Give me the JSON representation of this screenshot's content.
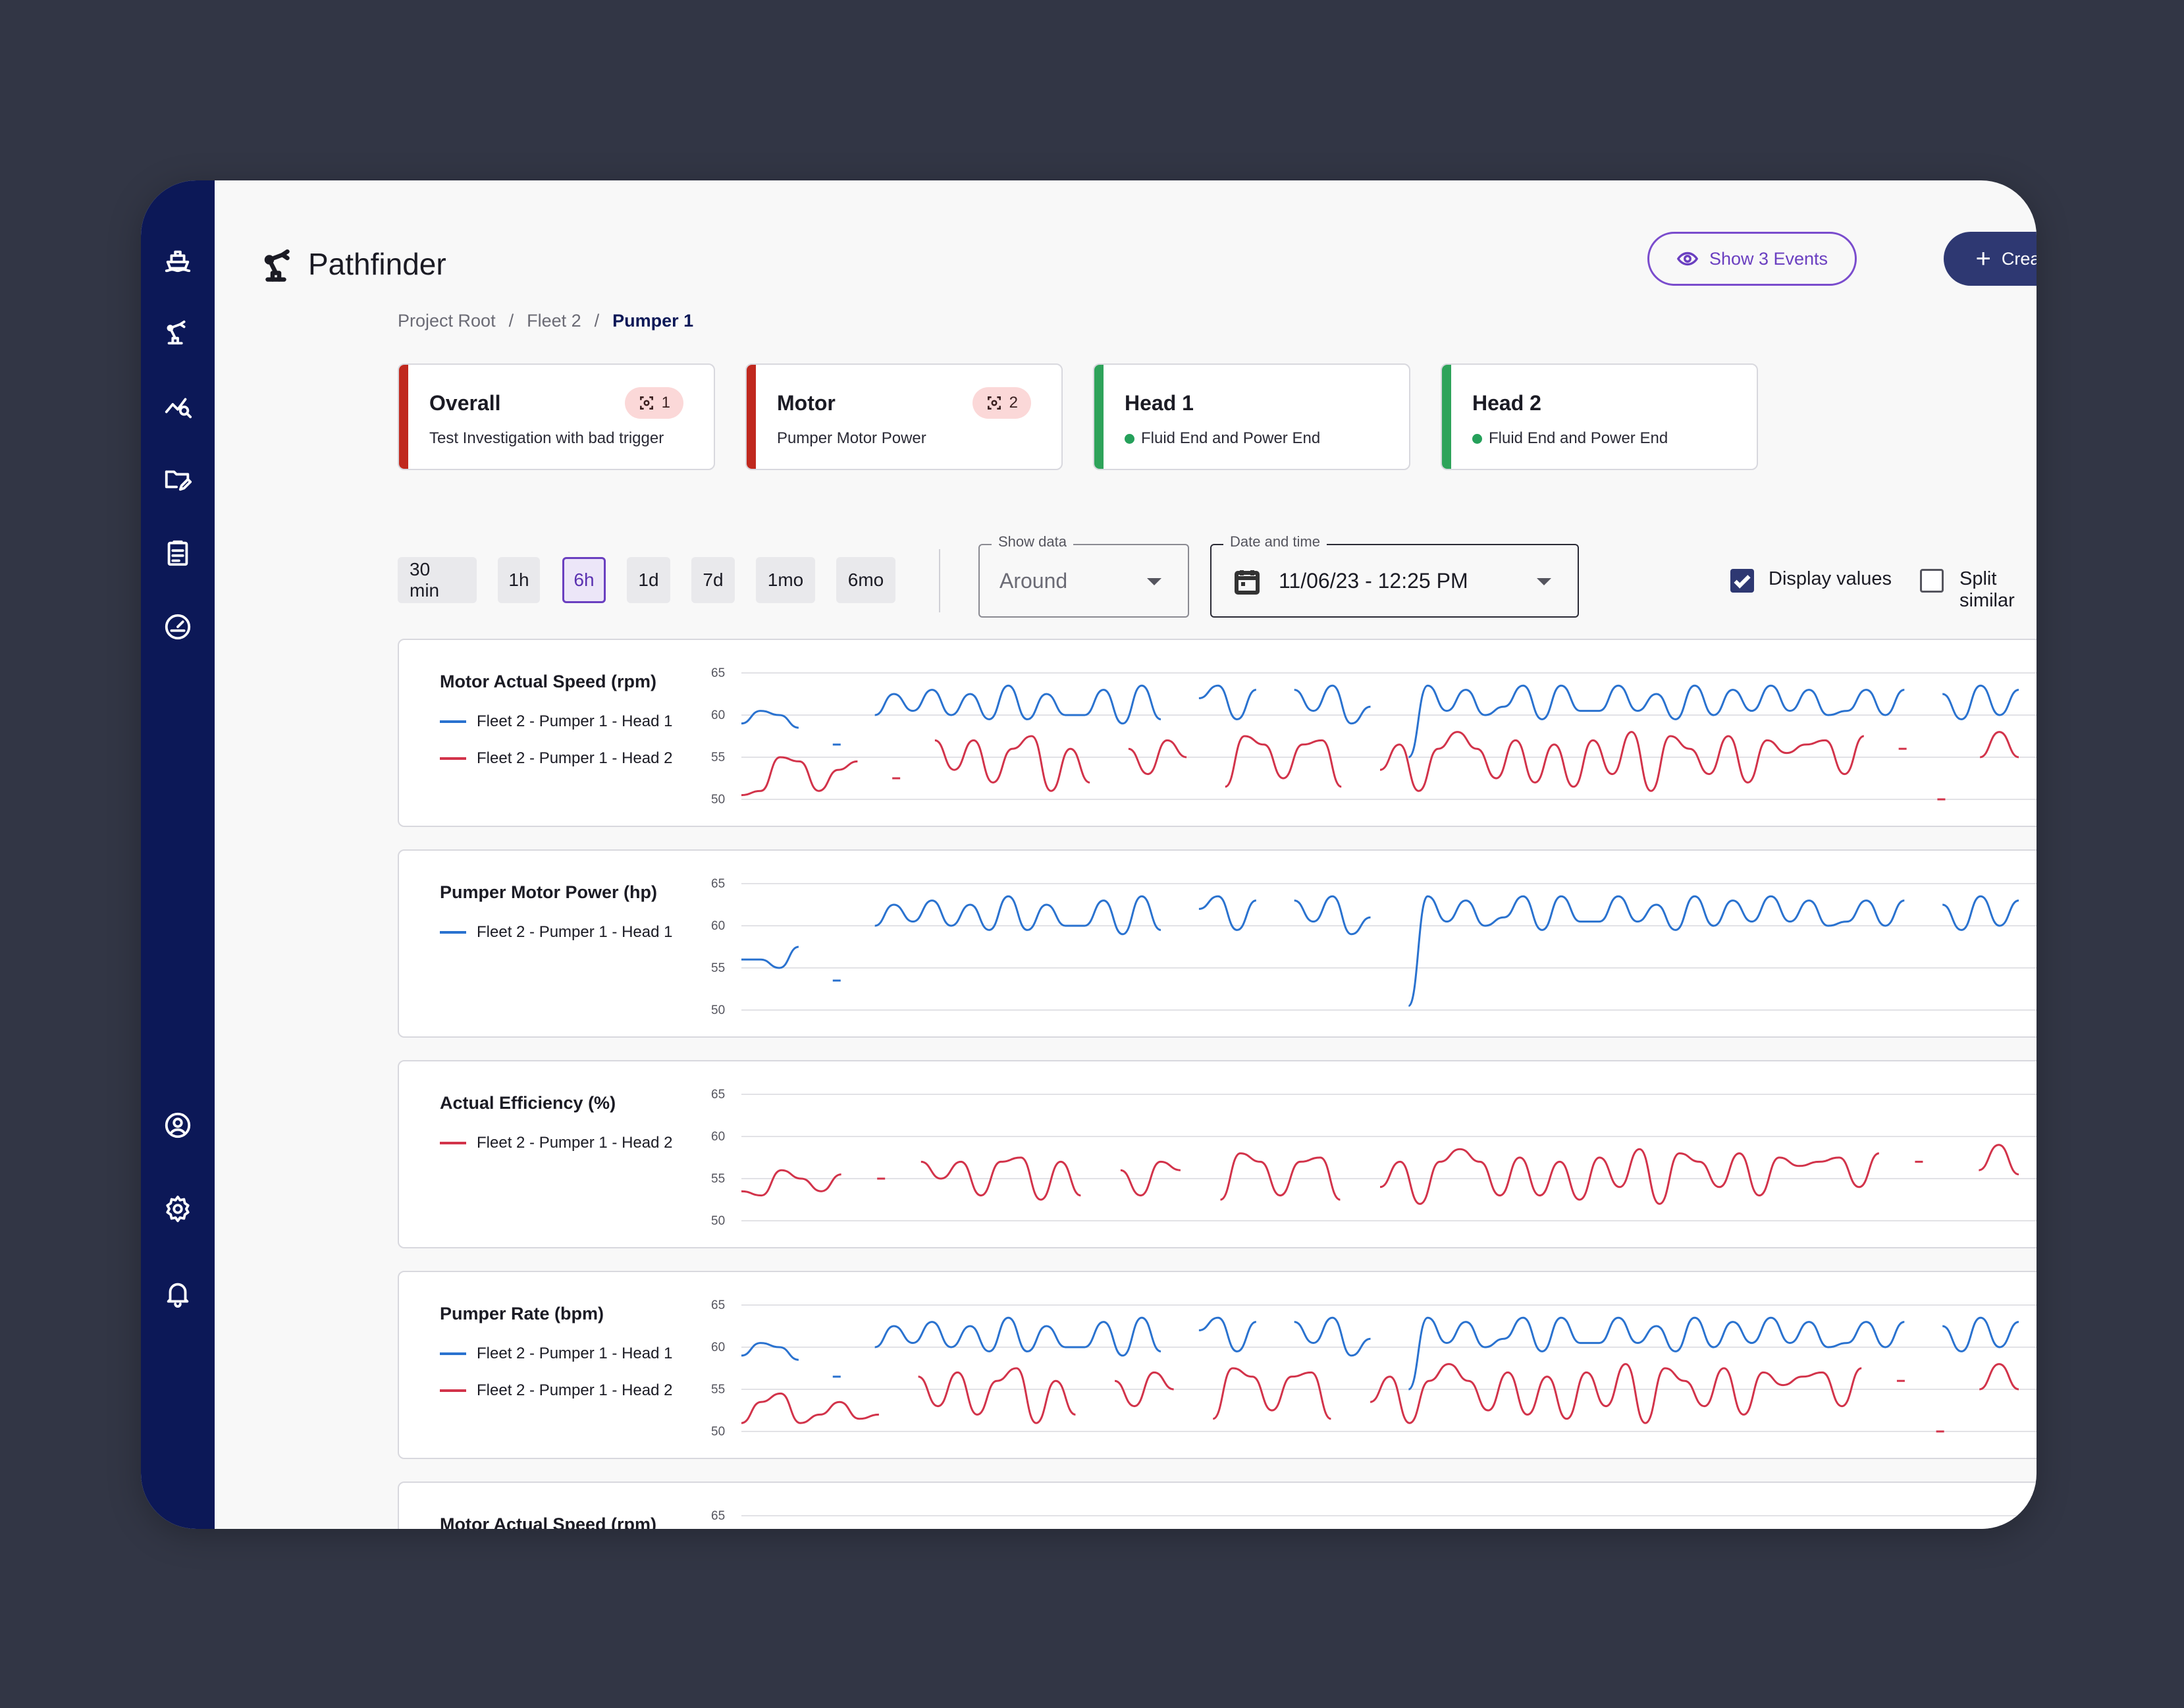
{
  "app": {
    "title": "Pathfinder"
  },
  "header": {
    "events_label": "Show 3 Events",
    "create_label": "Create Event"
  },
  "breadcrumb": {
    "items": [
      "Project Root",
      "/",
      "Fleet 2",
      "/",
      "Pumper 1"
    ]
  },
  "sidebar": {
    "icons": [
      "ship-icon",
      "robot-arm-icon",
      "chart-search-icon",
      "folder-edit-icon",
      "clipboard-icon",
      "gauge-icon",
      "account-icon",
      "settings-icon",
      "bell-icon"
    ]
  },
  "cards": [
    {
      "title": "Overall",
      "subtitle": "Test Investigation with bad trigger",
      "badge": "1",
      "status_color": "#c0281e"
    },
    {
      "title": "Motor",
      "subtitle": "Pumper Motor Power",
      "badge": "2",
      "status_color": "#c0281e"
    },
    {
      "title": "Head 1",
      "subtitle": "Fluid End and Power End",
      "status_color": "#2ea35a"
    },
    {
      "title": "Head 2",
      "subtitle": "Fluid End and Power End",
      "status_color": "#2ea35a"
    }
  ],
  "time_ranges": {
    "options": [
      "30 min",
      "1h",
      "6h",
      "1d",
      "7d",
      "1mo",
      "6mo"
    ],
    "selected": "6h"
  },
  "show_data": {
    "label": "Show data",
    "value": "Around"
  },
  "datetime": {
    "label": "Date and time",
    "value": "11/06/23 - 12:25 PM"
  },
  "options": {
    "display_values": "Display values",
    "display_values_checked": true,
    "split_similar": "Split similar",
    "split_similar_checked": false
  },
  "colors": {
    "head1": "#2a72cf",
    "head2": "#d2334a",
    "accent": "#2e3872",
    "violet": "#6a3fc0"
  },
  "chart_data": [
    {
      "type": "line",
      "title": "Motor Actual Speed (rpm)",
      "yticks": [
        "65",
        "60",
        "55",
        "50"
      ],
      "ylim": [
        48,
        67
      ],
      "series": [
        {
          "name": "Fleet 2 - Pumper 1 - Head 1",
          "color": "#2a72cf",
          "values": [
            59,
            60.5,
            60,
            58.5,
            null,
            56.5,
            null,
            60,
            62.5,
            60.5,
            63,
            60,
            62.5,
            59.5,
            63.5,
            59.5,
            62.5,
            60,
            60,
            63,
            59,
            63.5,
            59.5,
            null,
            62,
            63.5,
            59.5,
            63,
            null,
            63,
            60.5,
            63.5,
            59,
            61,
            null,
            55,
            63.5,
            60.5,
            63,
            60,
            61,
            63.5,
            59.5,
            63.5,
            60.5,
            60.5,
            63.5,
            60.5,
            62.5,
            59.5,
            63.5,
            60,
            63,
            60.5,
            63.5,
            60.5,
            63,
            60,
            60.5,
            63,
            60,
            63,
            null,
            62.5,
            59.5,
            63.5,
            60,
            63
          ]
        },
        {
          "name": "Fleet 2 - Pumper 1 - Head 2",
          "color": "#d2334a",
          "values": [
            50.5,
            51,
            55,
            54.5,
            51,
            53.5,
            54.5,
            null,
            52.5,
            null,
            57,
            53.5,
            57,
            52,
            56,
            57.5,
            51,
            56,
            52,
            null,
            56,
            53,
            57,
            55,
            null,
            51.5,
            57.5,
            56.5,
            52.5,
            56.5,
            57,
            51.5,
            null,
            53.5,
            56.5,
            51,
            56,
            58,
            56,
            52.5,
            57,
            52,
            56.5,
            51.5,
            57,
            53,
            58,
            51,
            57.5,
            56,
            53,
            57.5,
            52,
            57,
            55.5,
            56.5,
            57,
            53,
            57.5,
            null,
            56,
            null,
            50,
            null,
            55,
            58,
            55
          ]
        }
      ]
    },
    {
      "type": "line",
      "title": "Pumper Motor Power (hp)",
      "yticks": [
        "65",
        "60",
        "55",
        "50"
      ],
      "ylim": [
        48,
        67
      ],
      "series": [
        {
          "name": "Fleet 2 - Pumper 1 - Head 1",
          "color": "#2a72cf",
          "values": [
            56,
            56,
            55,
            57.5,
            null,
            53.5,
            null,
            60,
            62.5,
            60.5,
            63,
            60,
            62.5,
            59.5,
            63.5,
            59.5,
            62.5,
            60,
            60,
            63,
            59,
            63.5,
            59.5,
            null,
            62,
            63.5,
            59.5,
            63,
            null,
            63,
            60.5,
            63.5,
            59,
            61,
            null,
            50.5,
            63.5,
            60.5,
            63,
            60,
            61,
            63.5,
            59.5,
            63.5,
            60.5,
            60.5,
            63.5,
            60.5,
            62.5,
            59.5,
            63.5,
            60,
            63,
            60.5,
            63.5,
            60.5,
            63,
            60,
            60.5,
            63,
            60,
            63,
            null,
            62.5,
            59.5,
            63.5,
            60,
            63
          ]
        }
      ]
    },
    {
      "type": "line",
      "title": "Actual Efficiency (%)",
      "yticks": [
        "65",
        "60",
        "55",
        "50"
      ],
      "ylim": [
        48,
        67
      ],
      "series": [
        {
          "name": "Fleet 2 - Pumper 1 - Head 2",
          "color": "#d2334a",
          "values": [
            53.5,
            53,
            56,
            55,
            53.5,
            55.5,
            null,
            55,
            null,
            57,
            55,
            57,
            53,
            57,
            57.5,
            52.5,
            57,
            53,
            null,
            56,
            53,
            57,
            56,
            null,
            52.5,
            58,
            57,
            53,
            57,
            57.5,
            52.5,
            null,
            54,
            57,
            52,
            57,
            58.5,
            57,
            53,
            57.5,
            53,
            57,
            52.5,
            57.5,
            54,
            58.5,
            52,
            58,
            57,
            54,
            58,
            53,
            57.5,
            56.5,
            57,
            57.5,
            54,
            58,
            null,
            57,
            null,
            null,
            56,
            59,
            55.5
          ]
        }
      ]
    },
    {
      "type": "line",
      "title": "Pumper Rate (bpm)",
      "yticks": [
        "65",
        "60",
        "55",
        "50"
      ],
      "ylim": [
        48,
        67
      ],
      "series": [
        {
          "name": "Fleet 2 - Pumper 1 - Head 1",
          "color": "#2a72cf",
          "values": [
            59,
            60.5,
            60,
            58.5,
            null,
            56.5,
            null,
            60,
            62.5,
            60.5,
            63,
            60,
            62.5,
            59.5,
            63.5,
            59.5,
            62.5,
            60,
            60,
            63,
            59,
            63.5,
            59.5,
            null,
            62,
            63.5,
            59.5,
            63,
            null,
            63,
            60.5,
            63.5,
            59,
            61,
            null,
            55,
            63.5,
            60.5,
            63,
            60,
            61,
            63.5,
            59.5,
            63.5,
            60.5,
            60.5,
            63.5,
            60.5,
            62.5,
            59.5,
            63.5,
            60,
            63,
            60.5,
            63.5,
            60.5,
            63,
            60,
            60.5,
            63,
            60,
            63,
            null,
            62.5,
            59.5,
            63.5,
            60,
            63
          ]
        },
        {
          "name": "Fleet 2 - Pumper 1 - Head 2",
          "color": "#d2334a",
          "values": [
            51,
            53.5,
            54.5,
            51,
            52,
            53.5,
            51.5,
            52,
            null,
            56.5,
            53,
            57,
            52,
            56,
            57.5,
            51,
            56,
            52,
            null,
            56,
            53,
            57,
            55,
            null,
            51.5,
            57.5,
            56.5,
            52.5,
            56.5,
            57,
            51.5,
            null,
            53.5,
            56.5,
            51,
            56,
            58,
            56,
            52.5,
            57,
            52,
            56.5,
            51.5,
            57,
            53,
            58,
            51,
            57.5,
            56,
            53,
            57.5,
            52,
            57,
            55.5,
            56.5,
            57,
            53,
            57.5,
            null,
            56,
            null,
            50,
            null,
            55,
            58,
            55
          ]
        }
      ]
    },
    {
      "type": "line",
      "title": "Motor Actual Speed (rpm)",
      "yticks": [
        "65"
      ],
      "ylim": [
        48,
        67
      ],
      "series": []
    }
  ]
}
